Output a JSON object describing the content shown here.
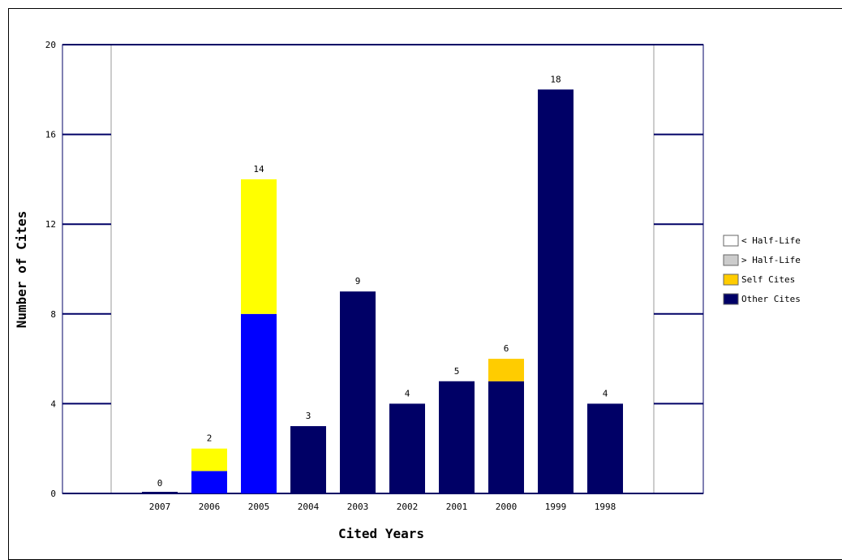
{
  "chart_data": {
    "type": "bar",
    "stacked": true,
    "categories": [
      "2007",
      "2006",
      "2005",
      "2004",
      "2003",
      "2002",
      "2001",
      "2000",
      "1999",
      "1998"
    ],
    "series": [
      {
        "name": "Other Cites",
        "values": [
          0,
          1,
          8,
          3,
          9,
          4,
          5,
          5,
          18,
          4
        ]
      },
      {
        "name": "Self Cites",
        "values": [
          0,
          1,
          6,
          0,
          0,
          0,
          0,
          1,
          0,
          0
        ]
      }
    ],
    "totals": [
      "0",
      "2",
      "14",
      "3",
      "9",
      "4",
      "5",
      "6",
      "18",
      "4"
    ],
    "highlight_category": "2005",
    "xlabel": "Cited Years",
    "ylabel": "Number of Cites",
    "ylim": [
      0,
      20
    ],
    "yticks": [
      "0",
      "4",
      "8",
      "12",
      "16",
      "20"
    ],
    "legend": [
      "< Half-Life",
      "> Half-Life",
      "Self Cites",
      "Other Cites"
    ],
    "legend_position": "right",
    "colors": {
      "other": "#000066",
      "other_highlight": "#0000ff",
      "self": "#ffff00",
      "self_highlight": "#ffcc00",
      "axis": "#000066",
      "legend_lt": "#ffffff",
      "legend_gt": "#cccccc",
      "legend_self": "#ffcc00",
      "legend_other": "#000066"
    }
  }
}
